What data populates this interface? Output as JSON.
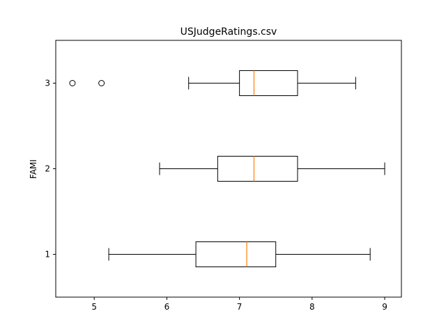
{
  "chart_data": {
    "type": "boxplot",
    "orientation": "horizontal",
    "title": "USJudgeRatings.csv",
    "xlabel": "",
    "ylabel": "FAMI",
    "xlim": [
      4.47,
      9.23
    ],
    "ylim": [
      0.5,
      3.5
    ],
    "xticks": [
      5,
      6,
      7,
      8,
      9
    ],
    "yticks": [
      1,
      2,
      3
    ],
    "grid": false,
    "colors": {
      "box": "#000000",
      "median": "#ff7f0e",
      "flier": "#000000"
    },
    "boxes": [
      {
        "position": 1,
        "label": "1",
        "whisker_low": 5.2,
        "q1": 6.4,
        "median": 7.1,
        "q3": 7.5,
        "whisker_high": 8.8,
        "fliers": []
      },
      {
        "position": 2,
        "label": "2",
        "whisker_low": 5.9,
        "q1": 6.7,
        "median": 7.2,
        "q3": 7.8,
        "whisker_high": 9.0,
        "fliers": []
      },
      {
        "position": 3,
        "label": "3",
        "whisker_low": 6.3,
        "q1": 7.0,
        "median": 7.2,
        "q3": 7.8,
        "whisker_high": 8.6,
        "fliers": [
          4.7,
          5.1
        ]
      }
    ]
  }
}
